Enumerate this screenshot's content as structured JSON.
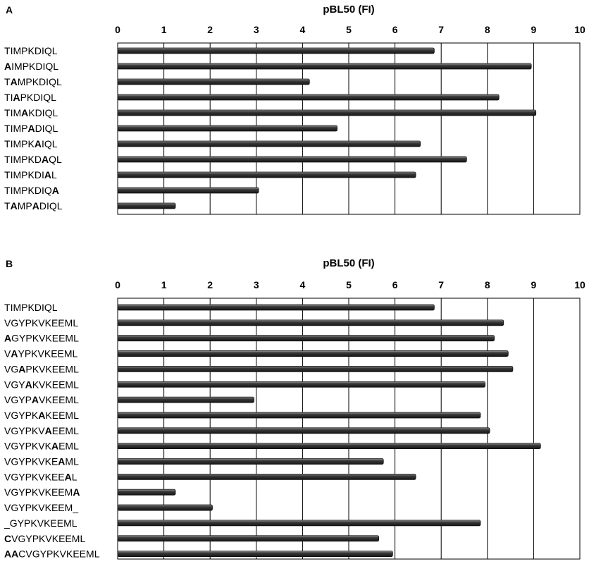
{
  "chart_data": [
    {
      "type": "bar",
      "orientation": "horizontal",
      "panel": "A",
      "title": "pBL50 (FI)",
      "xlim": [
        0,
        10
      ],
      "x_ticks": [
        "0",
        "1",
        "2",
        "3",
        "4",
        "5",
        "6",
        "7",
        "8",
        "9",
        "10"
      ],
      "grid": true,
      "categories": [
        {
          "label": "TIMPKDIQL",
          "bold_positions": []
        },
        {
          "label": "AIMPKDIQL",
          "bold_positions": [
            0
          ]
        },
        {
          "label": "TAMPKDIQL",
          "bold_positions": [
            1
          ]
        },
        {
          "label": "TIAPKDIQL",
          "bold_positions": [
            2
          ]
        },
        {
          "label": "TIMAKDIQL",
          "bold_positions": [
            3
          ]
        },
        {
          "label": "TIMPADIQL",
          "bold_positions": [
            4
          ]
        },
        {
          "label": "TIMPKAIQL",
          "bold_positions": [
            5
          ]
        },
        {
          "label": "TIMPKDAQL",
          "bold_positions": [
            6
          ]
        },
        {
          "label": "TIMPKDIAL",
          "bold_positions": [
            7
          ]
        },
        {
          "label": "TIMPKDIQA",
          "bold_positions": [
            8
          ]
        },
        {
          "label": "TAMPADIQL",
          "bold_positions": [
            1,
            4
          ]
        }
      ],
      "values": [
        6.85,
        8.95,
        4.15,
        8.25,
        9.05,
        4.75,
        6.55,
        7.55,
        6.45,
        3.05,
        1.25
      ],
      "bar_color": "#2b2b2b"
    },
    {
      "type": "bar",
      "orientation": "horizontal",
      "panel": "B",
      "title": "pBL50 (FI)",
      "xlim": [
        0,
        10
      ],
      "x_ticks": [
        "0",
        "1",
        "2",
        "3",
        "4",
        "5",
        "6",
        "7",
        "8",
        "9",
        "10"
      ],
      "grid": true,
      "categories": [
        {
          "label": "TIMPKDIQL",
          "bold_positions": []
        },
        {
          "label": "VGYPKVKEEML",
          "bold_positions": []
        },
        {
          "label": "AGYPKVKEEML",
          "bold_positions": [
            0
          ]
        },
        {
          "label": "VAYPKVKEEML",
          "bold_positions": [
            1
          ]
        },
        {
          "label": "VGAPKVKEEML",
          "bold_positions": [
            2
          ]
        },
        {
          "label": "VGYAKVKEEML",
          "bold_positions": [
            3
          ]
        },
        {
          "label": "VGYPAVKEEML",
          "bold_positions": [
            4
          ]
        },
        {
          "label": "VGYPKAKEEML",
          "bold_positions": [
            5
          ]
        },
        {
          "label": "VGYPKVAEEML",
          "bold_positions": [
            6
          ]
        },
        {
          "label": "VGYPKVKAEML",
          "bold_positions": [
            7
          ]
        },
        {
          "label": "VGYPKVKEAML",
          "bold_positions": [
            8
          ]
        },
        {
          "label": "VGYPKVKEEAL",
          "bold_positions": [
            9
          ]
        },
        {
          "label": "VGYPKVKEEMA",
          "bold_positions": [
            10
          ]
        },
        {
          "label": "VGYPKVKEEM_",
          "bold_positions": []
        },
        {
          "label": "_GYPKVKEEML",
          "bold_positions": []
        },
        {
          "label": "CVGYPKVKEEML",
          "bold_positions": [
            0
          ]
        },
        {
          "label": "AACVGYPKVKEEML",
          "bold_positions": [
            0,
            1
          ]
        }
      ],
      "values": [
        6.85,
        8.35,
        8.15,
        8.45,
        8.55,
        7.95,
        2.95,
        7.85,
        8.05,
        9.15,
        5.75,
        6.45,
        1.25,
        2.05,
        7.85,
        5.65,
        5.95
      ],
      "bar_color": "#2b2b2b"
    }
  ]
}
